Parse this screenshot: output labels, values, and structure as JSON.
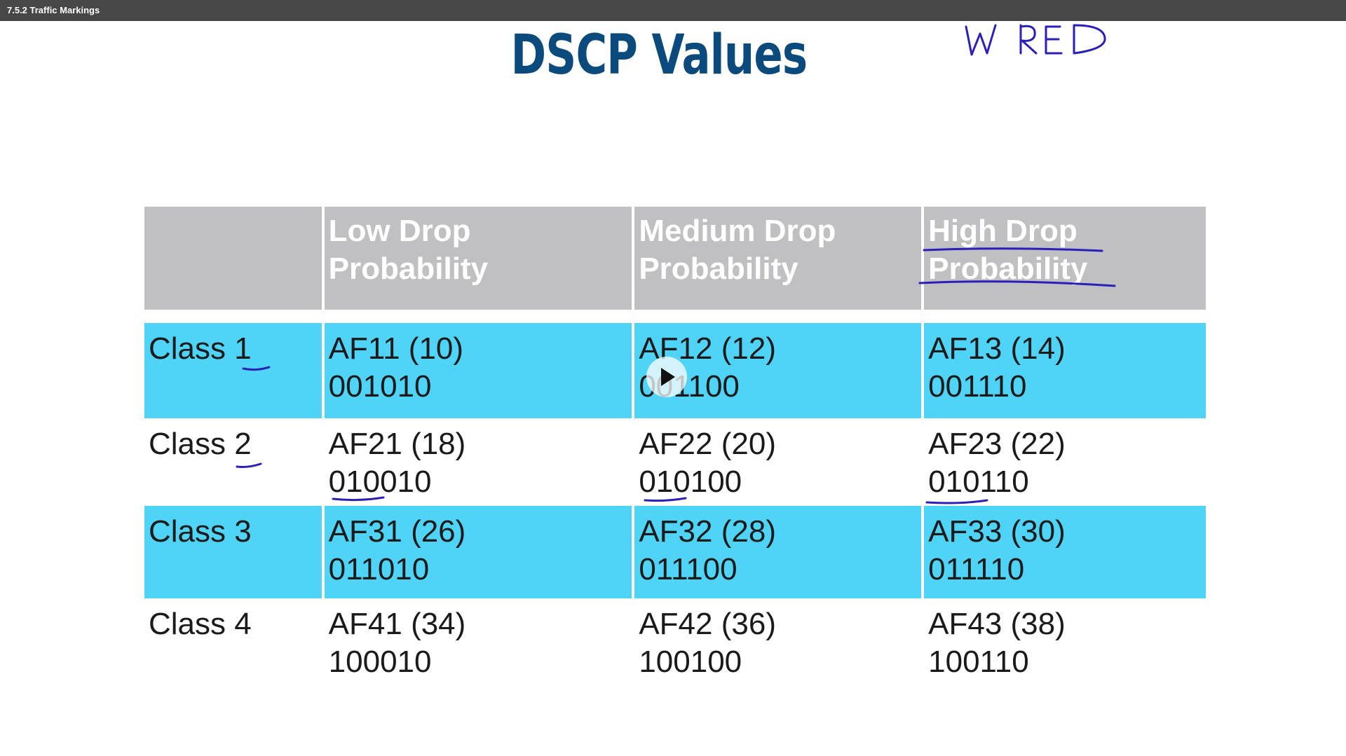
{
  "window": {
    "title": "7.5.2 Traffic Markings"
  },
  "slide": {
    "title": "DSCP Values",
    "handwritten_note": "WRED"
  },
  "table": {
    "headers": [
      "",
      "Low Drop Probability",
      "Medium Drop Probability",
      "High Drop Probability"
    ],
    "header_lines": [
      [
        "",
        ""
      ],
      [
        "Low Drop",
        "Probability"
      ],
      [
        "Medium Drop",
        "Probability"
      ],
      [
        "High Drop",
        "Probability"
      ]
    ],
    "rows": [
      {
        "class": "Class 1",
        "cells": [
          [
            "AF11 (10)",
            "001010"
          ],
          [
            "AF12 (12)",
            "001100"
          ],
          [
            "AF13 (14)",
            "001110"
          ]
        ]
      },
      {
        "class": "Class 2",
        "cells": [
          [
            "AF21 (18)",
            "010010"
          ],
          [
            "AF22 (20)",
            "010100"
          ],
          [
            "AF23 (22)",
            "010110"
          ]
        ]
      },
      {
        "class": "Class 3",
        "cells": [
          [
            "AF31 (26)",
            "011010"
          ],
          [
            "AF32 (28)",
            "011100"
          ],
          [
            "AF33 (30)",
            "011110"
          ]
        ]
      },
      {
        "class": "Class 4",
        "cells": [
          [
            "AF41 (34)",
            "100010"
          ],
          [
            "AF42 (36)",
            "100100"
          ],
          [
            "AF43 (38)",
            "100110"
          ]
        ]
      }
    ]
  },
  "colors": {
    "title": "#0b4a7c",
    "header_bg": "#c0bfc1",
    "highlight_row_bg": "#4fd3f7",
    "annotation_ink": "#2a1fb8"
  },
  "icons": {
    "play": "play-icon"
  }
}
